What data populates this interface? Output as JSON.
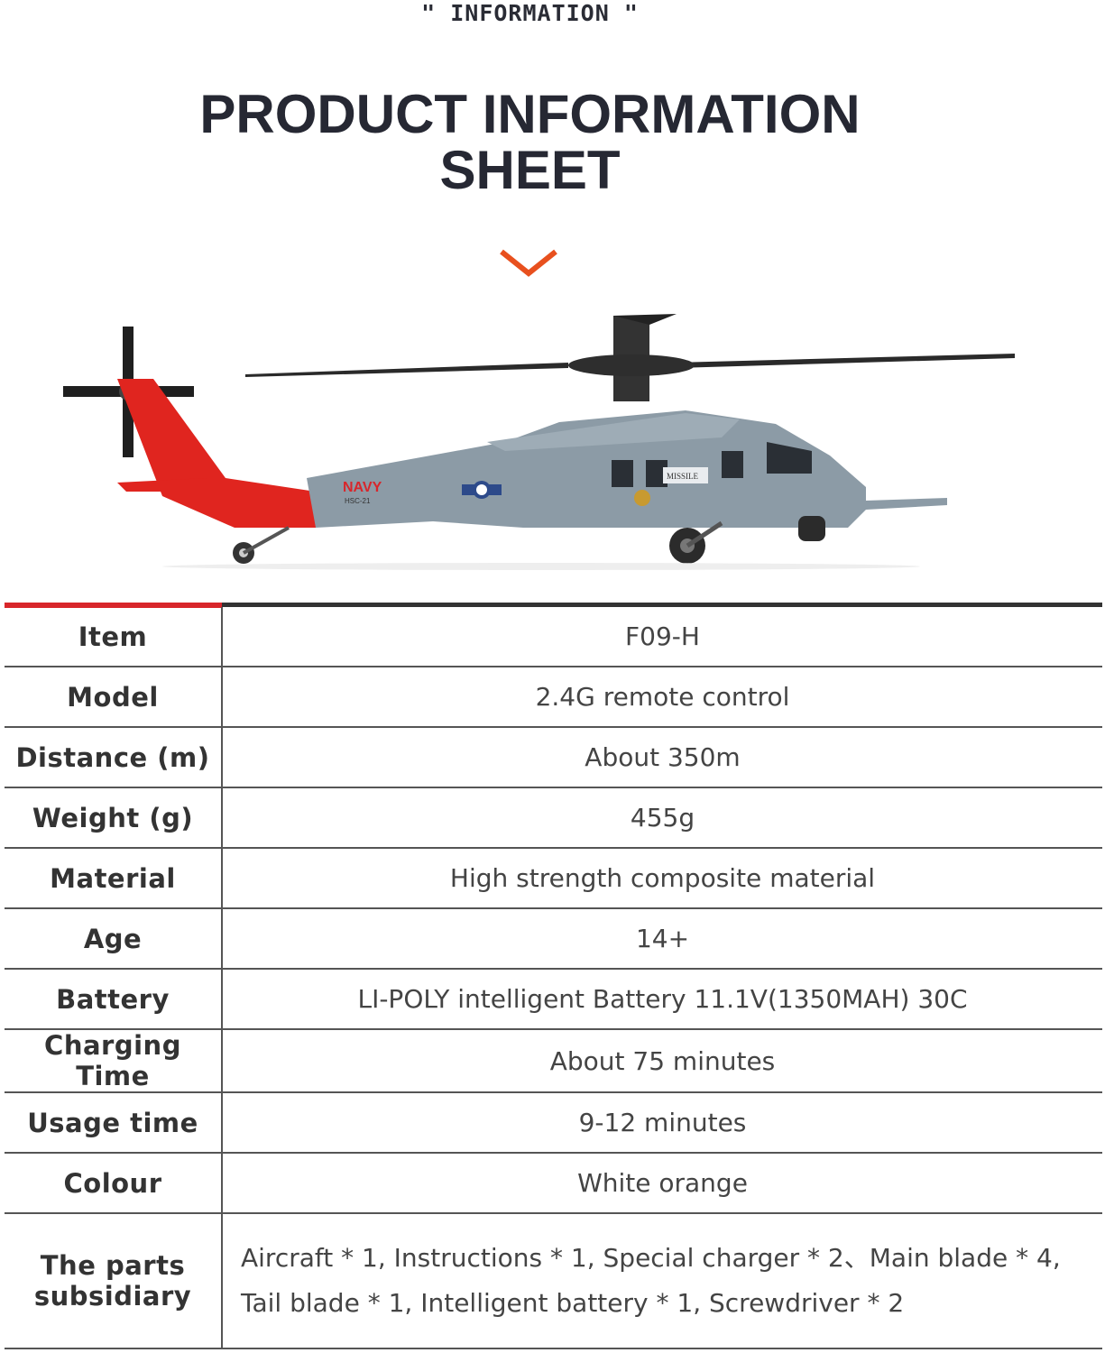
{
  "header": {
    "eyebrow": "\" INFORMATION \"",
    "title_line1": "PRODUCT INFORMATION",
    "title_line2": "SHEET"
  },
  "icons": {
    "chevron": "chevron-down-icon"
  },
  "colors": {
    "accent": "#e8501e",
    "table_top_left": "#d8262b",
    "helicopter_body": "#8c9ba6",
    "helicopter_tail": "#e0251f"
  },
  "image_lettering": [
    "NAVY",
    "HSC-21",
    "MISSILE"
  ],
  "specs": [
    {
      "label": "Item",
      "value": "F09-H"
    },
    {
      "label": "Model",
      "value": "2.4G remote control"
    },
    {
      "label": "Distance (m)",
      "value": "About 350m"
    },
    {
      "label": "Weight (g)",
      "value": "455g"
    },
    {
      "label": "Material",
      "value": "High strength composite material"
    },
    {
      "label": "Age",
      "value": "14+"
    },
    {
      "label": "Battery",
      "value": "LI-POLY intelligent Battery  11.1V(1350MAH) 30C"
    },
    {
      "label": "Charging Time",
      "value": "About 75 minutes"
    },
    {
      "label": "Usage time",
      "value": "9-12 minutes"
    },
    {
      "label": "Colour",
      "value": "White orange"
    }
  ],
  "parts": {
    "label_line1": "The parts",
    "label_line2": "subsidiary",
    "value_line1": "Aircraft * 1, Instructions * 1, Special charger * 2、Main blade * 4,",
    "value_line2": "Tail blade * 1, Intelligent battery * 1, Screwdriver * 2"
  }
}
